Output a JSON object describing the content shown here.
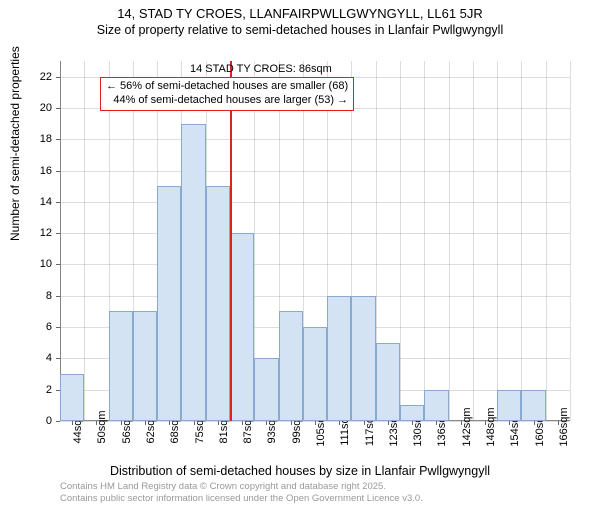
{
  "title": "14, STAD TY CROES, LLANFAIRPWLLGWYNGYLL, LL61 5JR",
  "subtitle": "Size of property relative to semi-detached houses in Llanfair Pwllgwyngyll",
  "y_axis_label": "Number of semi-detached properties",
  "x_axis_label": "Distribution of semi-detached houses by size in Llanfair Pwllgwyngyll",
  "footer_line1": "Contains HM Land Registry data © Crown copyright and database right 2025.",
  "footer_line2": "Contains public sector information licensed under the Open Government Licence v3.0.",
  "chart": {
    "type": "histogram",
    "ylim": [
      0,
      23
    ],
    "yticks": [
      0,
      2,
      4,
      6,
      8,
      10,
      12,
      14,
      16,
      18,
      20,
      22
    ],
    "x_categories": [
      "44sqm",
      "50sqm",
      "56sqm",
      "62sqm",
      "68sqm",
      "75sqm",
      "81sqm",
      "87sqm",
      "93sqm",
      "99sqm",
      "105sqm",
      "111sqm",
      "117sqm",
      "123sqm",
      "130sqm",
      "136sqm",
      "142sqm",
      "148sqm",
      "154sqm",
      "160sqm",
      "166sqm"
    ],
    "bars": [
      3,
      0,
      7,
      7,
      15,
      19,
      15,
      12,
      4,
      7,
      6,
      8,
      8,
      5,
      1,
      2,
      0,
      0,
      2,
      2,
      0
    ],
    "bar_fill": "#d3e3f3",
    "bar_stroke": "#8aa9cf",
    "grid_color": "#777777",
    "marker": {
      "index_between": 7,
      "color": "#dd2222",
      "title": "14 STAD TY CROES: 86sqm",
      "box_line1": "← 56% of semi-detached houses are smaller (68)",
      "box_line2": "44% of semi-detached houses are larger (53) →",
      "box_border": "#dd2222"
    }
  }
}
